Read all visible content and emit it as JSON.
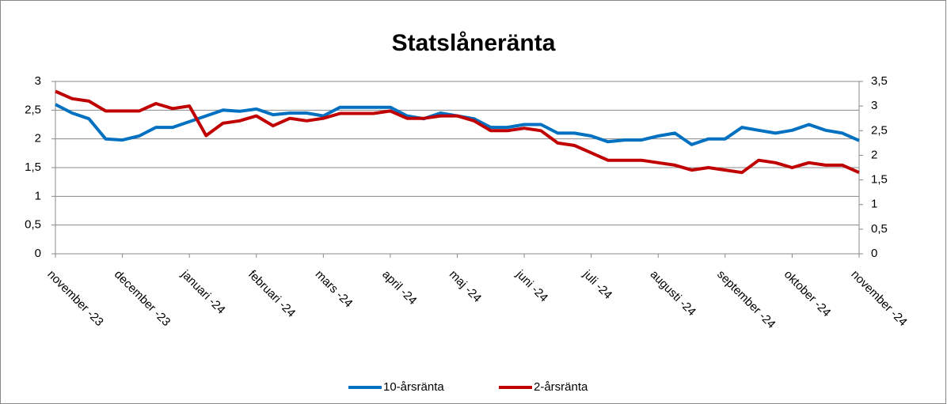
{
  "chart_data": {
    "type": "line",
    "title": "Statslåneränta",
    "categories": [
      "november -23",
      null,
      null,
      null,
      "december -23",
      null,
      null,
      null,
      "januari -24",
      null,
      null,
      null,
      "februari -24",
      null,
      null,
      null,
      "mars -24",
      null,
      null,
      null,
      "april -24",
      null,
      null,
      null,
      "maj -24",
      null,
      null,
      null,
      "juni -24",
      null,
      null,
      null,
      "juli -24",
      null,
      null,
      null,
      "augusti -24",
      null,
      null,
      null,
      "september -24",
      null,
      null,
      null,
      "oktober -24",
      null,
      null,
      null,
      "november -24"
    ],
    "series": [
      {
        "name": "10-årsränta",
        "color": "#0070c0",
        "values": [
          2.6,
          2.45,
          2.35,
          2.0,
          1.98,
          2.05,
          2.2,
          2.2,
          2.3,
          2.4,
          2.5,
          2.48,
          2.52,
          2.42,
          2.45,
          2.45,
          2.4,
          2.55,
          2.55,
          2.55,
          2.55,
          2.4,
          2.35,
          2.45,
          2.4,
          2.35,
          2.2,
          2.2,
          2.25,
          2.25,
          2.1,
          2.1,
          2.05,
          1.95,
          1.98,
          1.98,
          2.05,
          2.1,
          1.9,
          2.0,
          2.0,
          2.2,
          2.15,
          2.1,
          2.15,
          2.25,
          2.15,
          2.1,
          1.97
        ]
      },
      {
        "name": "2-årsränta",
        "color": "#c00000",
        "axis": "y2",
        "values": [
          3.3,
          3.15,
          3.1,
          2.9,
          2.9,
          2.9,
          3.05,
          2.95,
          3.0,
          2.4,
          2.65,
          2.7,
          2.8,
          2.6,
          2.75,
          2.7,
          2.75,
          2.85,
          2.85,
          2.85,
          2.9,
          2.75,
          2.75,
          2.8,
          2.8,
          2.7,
          2.5,
          2.5,
          2.55,
          2.5,
          2.25,
          2.2,
          2.05,
          1.9,
          1.9,
          1.9,
          1.85,
          1.8,
          1.7,
          1.75,
          1.7,
          1.65,
          1.9,
          1.85,
          1.75,
          1.85,
          1.8,
          1.8,
          1.65
        ]
      }
    ],
    "ylim": [
      0,
      3
    ],
    "yticks": [
      0,
      {
        "value": 0.5,
        "label": "0,5"
      },
      1,
      {
        "value": 1.5,
        "label": "1,5"
      },
      2,
      {
        "value": 2.5,
        "label": "2,5"
      },
      3
    ],
    "y2lim": [
      0,
      3.5
    ],
    "y2ticks": [
      0,
      {
        "value": 0.5,
        "label": "0,5"
      },
      1,
      {
        "value": 1.5,
        "label": "1,5"
      },
      2,
      {
        "value": 2.5,
        "label": "2,5"
      },
      3,
      {
        "value": 3.5,
        "label": "3,5"
      }
    ],
    "grid": true,
    "legend": "bottom"
  }
}
